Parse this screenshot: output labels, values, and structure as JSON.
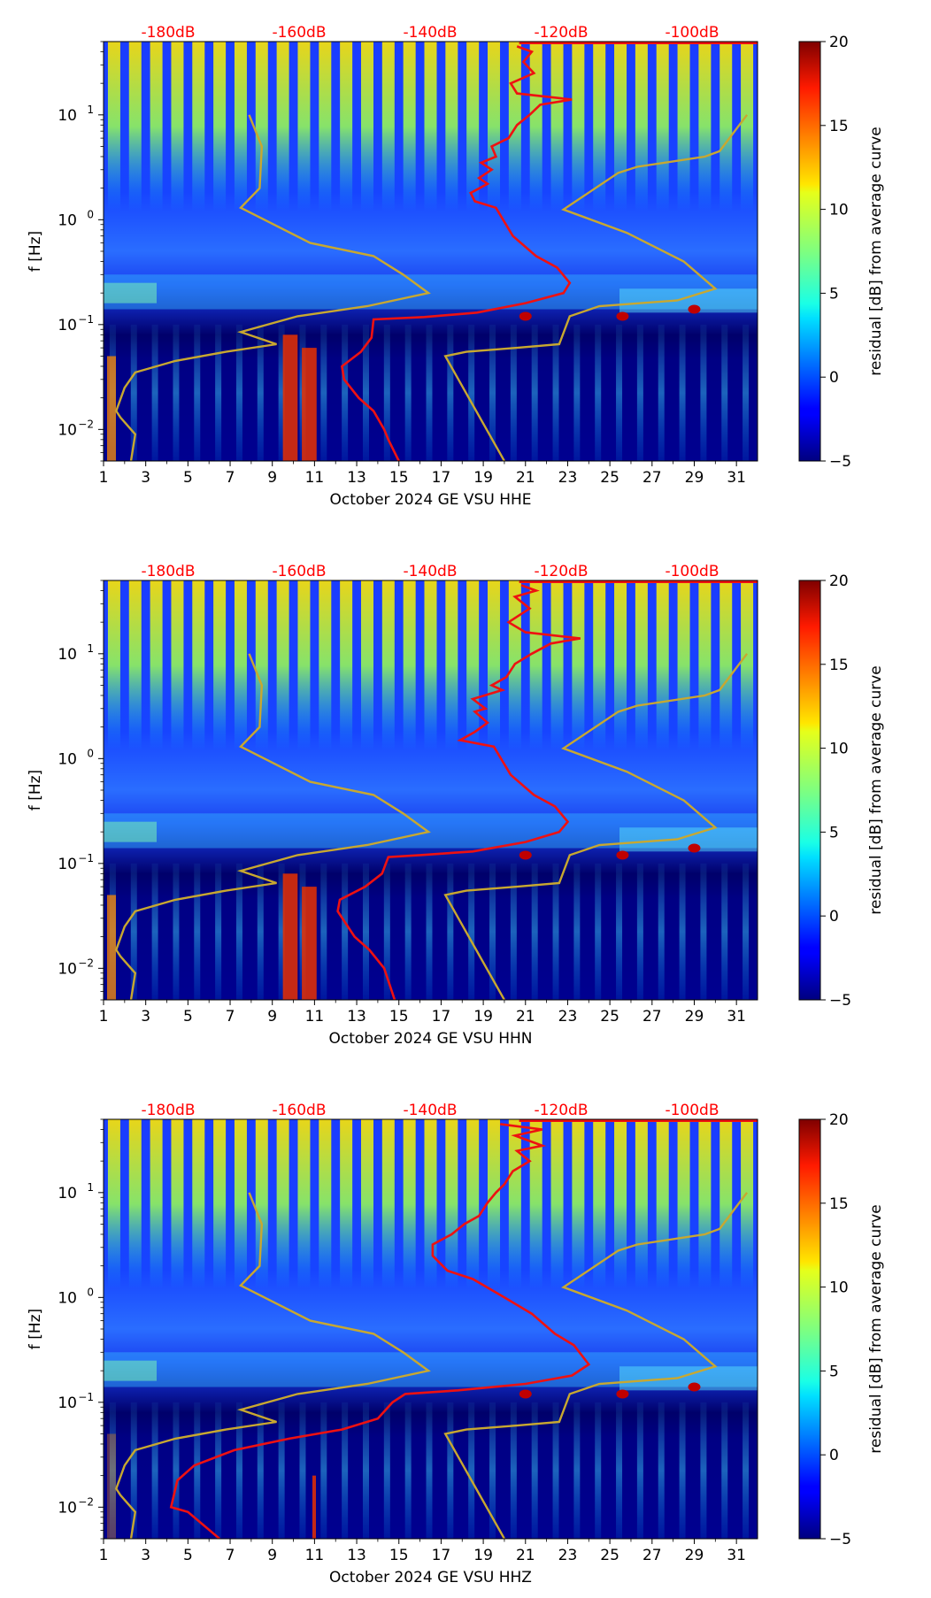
{
  "chart_data": [
    {
      "type": "heatmap",
      "xlabel": "October 2024 GE VSU  HHE",
      "ylabel": "f [Hz]",
      "x_ticks": [
        "1",
        "3",
        "5",
        "7",
        "9",
        "11",
        "13",
        "15",
        "17",
        "19",
        "21",
        "23",
        "25",
        "27",
        "29",
        "31"
      ],
      "xlim": [
        1,
        32
      ],
      "ylim": [
        0.005,
        50
      ],
      "y_ticks": [
        {
          "label": "10",
          "exp": "1",
          "value": 10
        },
        {
          "label": "10",
          "exp": "0",
          "value": 1
        },
        {
          "label": "10",
          "exp": "−1",
          "value": 0.1
        },
        {
          "label": "10",
          "exp": "−2",
          "value": 0.01
        }
      ],
      "db_labels": [
        "-180dB",
        "-160dB",
        "-140dB",
        "-120dB",
        "-100dB"
      ],
      "colorbar": {
        "label": "residual [dB] from average curve",
        "min": -5,
        "max": 20,
        "ticks": [
          "20",
          "15",
          "10",
          "5",
          "0",
          "−5"
        ]
      },
      "red_curve": [
        [
          20.6,
          45
        ],
        [
          21.3,
          40
        ],
        [
          20.9,
          32
        ],
        [
          21.4,
          25
        ],
        [
          20.3,
          20
        ],
        [
          20.6,
          16
        ],
        [
          23.2,
          14
        ],
        [
          21.7,
          12.5
        ],
        [
          21.2,
          10
        ],
        [
          20.6,
          8
        ],
        [
          20.2,
          6
        ],
        [
          19.4,
          5
        ],
        [
          19.6,
          4
        ],
        [
          18.9,
          3.5
        ],
        [
          19.4,
          3
        ],
        [
          18.8,
          2.5
        ],
        [
          19.2,
          2.2
        ],
        [
          18.4,
          1.8
        ],
        [
          18.6,
          1.5
        ],
        [
          19.6,
          1.3
        ],
        [
          20.4,
          0.7
        ],
        [
          21.5,
          0.45
        ],
        [
          22.5,
          0.35
        ],
        [
          23.1,
          0.25
        ],
        [
          22.8,
          0.2
        ],
        [
          21.0,
          0.16
        ],
        [
          18.7,
          0.13
        ],
        [
          16.2,
          0.118
        ],
        [
          13.8,
          0.112
        ],
        [
          13.7,
          0.075
        ],
        [
          13.2,
          0.055
        ],
        [
          12.3,
          0.04
        ],
        [
          12.4,
          0.03
        ],
        [
          13.1,
          0.02
        ],
        [
          13.8,
          0.015
        ],
        [
          14.3,
          0.01
        ],
        [
          14.5,
          0.008
        ],
        [
          15.0,
          0.005
        ]
      ],
      "gold_curves": [
        [
          [
            7.9,
            10
          ],
          [
            8.5,
            5
          ],
          [
            8.4,
            2
          ],
          [
            7.5,
            1.3
          ],
          [
            10.8,
            0.6
          ],
          [
            13.8,
            0.45
          ],
          [
            15.2,
            0.3
          ],
          [
            16.4,
            0.2
          ],
          [
            13.5,
            0.15
          ],
          [
            10.2,
            0.12
          ],
          [
            7.5,
            0.085
          ],
          [
            9.2,
            0.065
          ],
          [
            6.8,
            0.055
          ],
          [
            4.4,
            0.045
          ],
          [
            2.5,
            0.035
          ],
          [
            2.0,
            0.025
          ],
          [
            1.6,
            0.015
          ],
          [
            1.8,
            0.013
          ],
          [
            2.5,
            0.009
          ],
          [
            2.3,
            0.005
          ]
        ],
        [
          [
            31.5,
            10
          ],
          [
            30.2,
            4.5
          ],
          [
            29.5,
            4.0
          ],
          [
            26.3,
            3.2
          ],
          [
            25.4,
            2.8
          ],
          [
            22.8,
            1.25
          ],
          [
            25.8,
            0.75
          ],
          [
            28.5,
            0.4
          ],
          [
            30.0,
            0.22
          ],
          [
            28.2,
            0.17
          ],
          [
            24.5,
            0.15
          ],
          [
            23.1,
            0.12
          ],
          [
            22.6,
            0.065
          ],
          [
            20.6,
            0.06
          ],
          [
            18.2,
            0.055
          ],
          [
            17.2,
            0.05
          ],
          [
            20.0,
            0.005
          ]
        ]
      ]
    },
    {
      "type": "heatmap",
      "xlabel": "October 2024 GE VSU  HHN",
      "ylabel": "f [Hz]",
      "x_ticks": [
        "1",
        "3",
        "5",
        "7",
        "9",
        "11",
        "13",
        "15",
        "17",
        "19",
        "21",
        "23",
        "25",
        "27",
        "29",
        "31"
      ],
      "xlim": [
        1,
        32
      ],
      "ylim": [
        0.005,
        50
      ],
      "y_ticks": [
        {
          "label": "10",
          "exp": "1",
          "value": 10
        },
        {
          "label": "10",
          "exp": "0",
          "value": 1
        },
        {
          "label": "10",
          "exp": "−1",
          "value": 0.1
        },
        {
          "label": "10",
          "exp": "−2",
          "value": 0.01
        }
      ],
      "db_labels": [
        "-180dB",
        "-160dB",
        "-140dB",
        "-120dB",
        "-100dB"
      ],
      "colorbar": {
        "label": "residual [dB] from average curve",
        "min": -5,
        "max": 20,
        "ticks": [
          "20",
          "15",
          "10",
          "5",
          "0",
          "−5"
        ]
      },
      "red_curve": [
        [
          20.8,
          45
        ],
        [
          21.5,
          40
        ],
        [
          20.5,
          35
        ],
        [
          21.2,
          27
        ],
        [
          20.2,
          20
        ],
        [
          21.0,
          16
        ],
        [
          23.6,
          14
        ],
        [
          22.2,
          12.5
        ],
        [
          21.3,
          10
        ],
        [
          20.5,
          8
        ],
        [
          20.1,
          6
        ],
        [
          19.4,
          5
        ],
        [
          19.9,
          4.5
        ],
        [
          18.5,
          3.7
        ],
        [
          19.1,
          3
        ],
        [
          18.6,
          2.8
        ],
        [
          19.2,
          2.2
        ],
        [
          18.6,
          1.8
        ],
        [
          17.9,
          1.5
        ],
        [
          19.5,
          1.3
        ],
        [
          20.3,
          0.7
        ],
        [
          21.4,
          0.45
        ],
        [
          22.4,
          0.35
        ],
        [
          23.0,
          0.25
        ],
        [
          22.6,
          0.2
        ],
        [
          21.0,
          0.16
        ],
        [
          18.5,
          0.13
        ],
        [
          16.0,
          0.12
        ],
        [
          14.5,
          0.115
        ],
        [
          14.2,
          0.08
        ],
        [
          13.4,
          0.06
        ],
        [
          12.2,
          0.045
        ],
        [
          12.1,
          0.035
        ],
        [
          12.9,
          0.02
        ],
        [
          13.6,
          0.015
        ],
        [
          14.3,
          0.01
        ],
        [
          14.8,
          0.005
        ]
      ],
      "gold_curves": [
        [
          [
            7.9,
            10
          ],
          [
            8.5,
            5
          ],
          [
            8.4,
            2
          ],
          [
            7.5,
            1.3
          ],
          [
            10.8,
            0.6
          ],
          [
            13.8,
            0.45
          ],
          [
            15.2,
            0.3
          ],
          [
            16.4,
            0.2
          ],
          [
            13.5,
            0.15
          ],
          [
            10.2,
            0.12
          ],
          [
            7.5,
            0.085
          ],
          [
            9.2,
            0.065
          ],
          [
            6.8,
            0.055
          ],
          [
            4.4,
            0.045
          ],
          [
            2.5,
            0.035
          ],
          [
            2.0,
            0.025
          ],
          [
            1.6,
            0.015
          ],
          [
            1.8,
            0.013
          ],
          [
            2.5,
            0.009
          ],
          [
            2.3,
            0.005
          ]
        ],
        [
          [
            31.5,
            10
          ],
          [
            30.2,
            4.5
          ],
          [
            29.5,
            4.0
          ],
          [
            26.3,
            3.2
          ],
          [
            25.4,
            2.8
          ],
          [
            22.8,
            1.25
          ],
          [
            25.8,
            0.75
          ],
          [
            28.5,
            0.4
          ],
          [
            30.0,
            0.22
          ],
          [
            28.2,
            0.17
          ],
          [
            24.5,
            0.15
          ],
          [
            23.1,
            0.12
          ],
          [
            22.6,
            0.065
          ],
          [
            20.6,
            0.06
          ],
          [
            18.2,
            0.055
          ],
          [
            17.2,
            0.05
          ],
          [
            20.0,
            0.005
          ]
        ]
      ]
    },
    {
      "type": "heatmap",
      "xlabel": "October 2024 GE VSU  HHZ",
      "ylabel": "f [Hz]",
      "x_ticks": [
        "1",
        "3",
        "5",
        "7",
        "9",
        "11",
        "13",
        "15",
        "17",
        "19",
        "21",
        "23",
        "25",
        "27",
        "29",
        "31"
      ],
      "xlim": [
        1,
        32
      ],
      "ylim": [
        0.005,
        50
      ],
      "y_ticks": [
        {
          "label": "10",
          "exp": "1",
          "value": 10
        },
        {
          "label": "10",
          "exp": "0",
          "value": 1
        },
        {
          "label": "10",
          "exp": "−1",
          "value": 0.1
        },
        {
          "label": "10",
          "exp": "−2",
          "value": 0.01
        }
      ],
      "db_labels": [
        "-180dB",
        "-160dB",
        "-140dB",
        "-120dB",
        "-100dB"
      ],
      "colorbar": {
        "label": "residual [dB] from average curve",
        "min": -5,
        "max": 20,
        "ticks": [
          "20",
          "15",
          "10",
          "5",
          "0",
          "−5"
        ]
      },
      "red_curve": [
        [
          19.8,
          45
        ],
        [
          21.8,
          40
        ],
        [
          20.5,
          35
        ],
        [
          21.8,
          28
        ],
        [
          20.6,
          25
        ],
        [
          21.2,
          20
        ],
        [
          20.4,
          16
        ],
        [
          20.0,
          12
        ],
        [
          19.6,
          10
        ],
        [
          19.2,
          8
        ],
        [
          18.8,
          6
        ],
        [
          18.1,
          5
        ],
        [
          17.5,
          4
        ],
        [
          16.6,
          3.2
        ],
        [
          16.6,
          2.5
        ],
        [
          17.3,
          1.8
        ],
        [
          18.5,
          1.5
        ],
        [
          20.0,
          1.0
        ],
        [
          21.3,
          0.7
        ],
        [
          22.4,
          0.45
        ],
        [
          23.3,
          0.35
        ],
        [
          24.0,
          0.23
        ],
        [
          23.2,
          0.18
        ],
        [
          21.0,
          0.15
        ],
        [
          17.8,
          0.13
        ],
        [
          15.3,
          0.12
        ],
        [
          14.7,
          0.1
        ],
        [
          14.0,
          0.07
        ],
        [
          12.3,
          0.055
        ],
        [
          9.8,
          0.045
        ],
        [
          7.2,
          0.035
        ],
        [
          5.3,
          0.025
        ],
        [
          4.5,
          0.018
        ],
        [
          4.2,
          0.01
        ],
        [
          5.0,
          0.009
        ],
        [
          6.5,
          0.005
        ]
      ],
      "gold_curves": [
        [
          [
            7.9,
            10
          ],
          [
            8.5,
            5
          ],
          [
            8.4,
            2
          ],
          [
            7.5,
            1.3
          ],
          [
            10.8,
            0.6
          ],
          [
            13.8,
            0.45
          ],
          [
            15.2,
            0.3
          ],
          [
            16.4,
            0.2
          ],
          [
            13.5,
            0.15
          ],
          [
            10.2,
            0.12
          ],
          [
            7.5,
            0.085
          ],
          [
            9.2,
            0.065
          ],
          [
            6.8,
            0.055
          ],
          [
            4.4,
            0.045
          ],
          [
            2.5,
            0.035
          ],
          [
            2.0,
            0.025
          ],
          [
            1.6,
            0.015
          ],
          [
            1.8,
            0.013
          ],
          [
            2.5,
            0.009
          ],
          [
            2.3,
            0.005
          ]
        ],
        [
          [
            31.5,
            10
          ],
          [
            30.2,
            4.5
          ],
          [
            29.5,
            4.0
          ],
          [
            26.3,
            3.2
          ],
          [
            25.4,
            2.8
          ],
          [
            22.8,
            1.25
          ],
          [
            25.8,
            0.75
          ],
          [
            28.5,
            0.4
          ],
          [
            30.0,
            0.22
          ],
          [
            28.2,
            0.17
          ],
          [
            24.5,
            0.15
          ],
          [
            23.1,
            0.12
          ],
          [
            22.6,
            0.065
          ],
          [
            20.6,
            0.06
          ],
          [
            18.2,
            0.055
          ],
          [
            17.2,
            0.05
          ],
          [
            20.0,
            0.005
          ]
        ]
      ]
    }
  ]
}
